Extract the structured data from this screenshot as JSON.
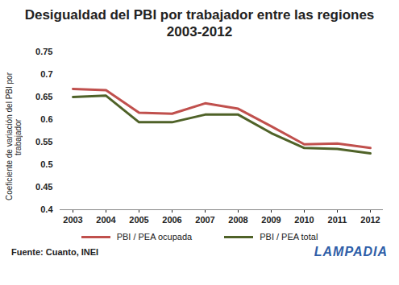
{
  "chart_data": {
    "type": "line",
    "title": "Desigualdad del PBI por trabajador entre las regiones 2003-2012",
    "y_label": "Coeficiente de variación del PBI por trabajador",
    "source": "Fuente: Cuanto, INEI",
    "brand": "LAMPADIA",
    "categories": [
      "2003",
      "2004",
      "2005",
      "2006",
      "2007",
      "2008",
      "2009",
      "2010",
      "2011",
      "2012"
    ],
    "series": [
      {
        "name": "PBI / PEA ocupada",
        "color": "#c0504d",
        "values": [
          0.668,
          0.665,
          0.615,
          0.613,
          0.636,
          0.624,
          0.585,
          0.545,
          0.547,
          0.537
        ]
      },
      {
        "name": "PBI / PEA total",
        "color": "#4f6228",
        "values": [
          0.65,
          0.653,
          0.594,
          0.594,
          0.611,
          0.611,
          0.57,
          0.537,
          0.535,
          0.525
        ]
      }
    ],
    "ylim": [
      0.4,
      0.75
    ],
    "yticks": [
      0.4,
      0.45,
      0.5,
      0.55,
      0.6,
      0.65,
      0.7,
      0.75
    ],
    "grid": false,
    "legend": "bottom"
  }
}
